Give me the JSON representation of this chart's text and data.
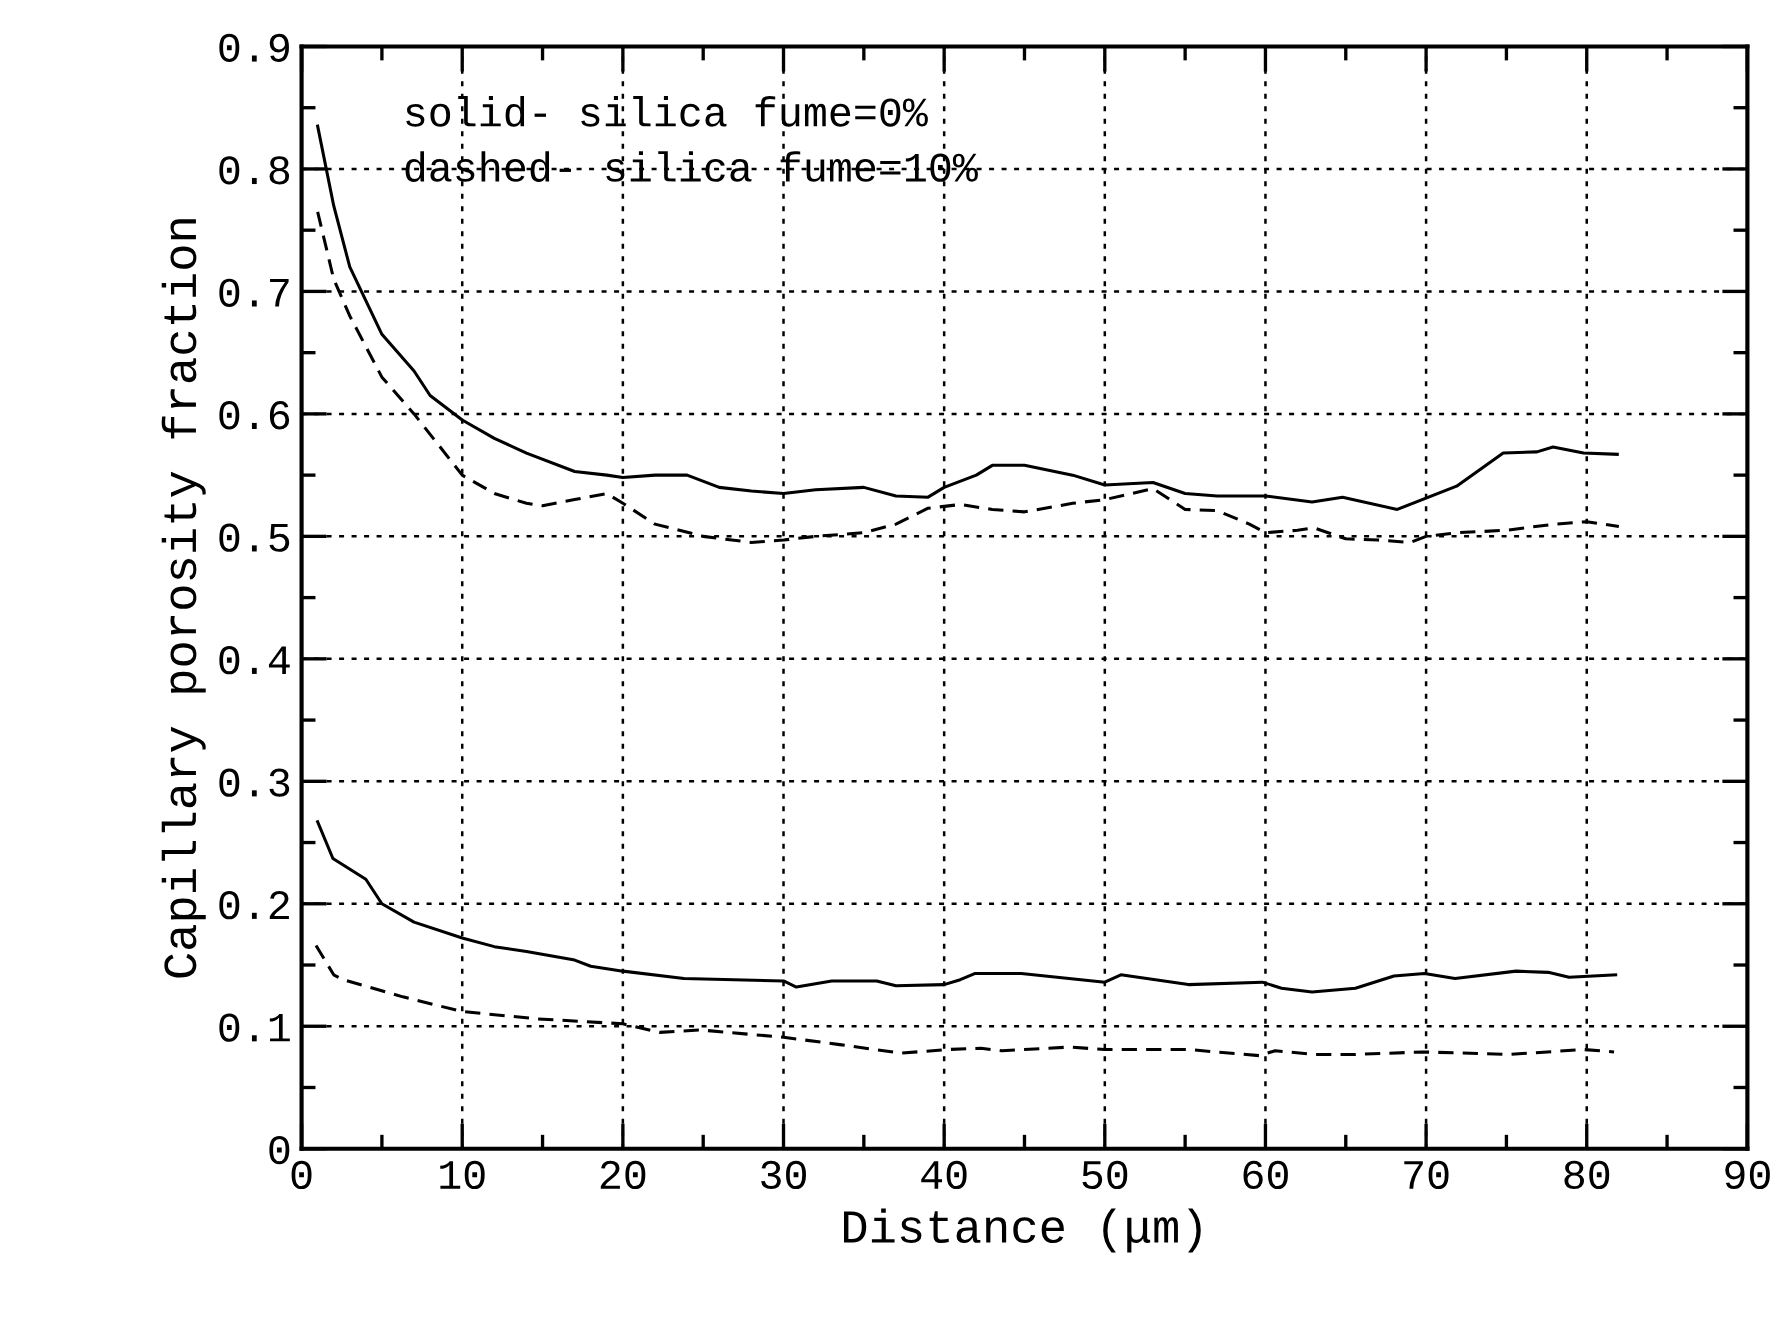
{
  "chart_data": {
    "type": "line",
    "xlabel": "Distance (μm)",
    "ylabel": "Capillary porosity fraction",
    "annotations": [
      "solid- silica fume=0%",
      "dashed- silica fume=10%"
    ],
    "xlim": [
      0,
      90
    ],
    "ylim": [
      0,
      0.9
    ],
    "xticks": [
      0,
      10,
      20,
      30,
      40,
      50,
      60,
      70,
      80,
      90
    ],
    "yticks": [
      0,
      0.1,
      0.2,
      0.3,
      0.4,
      0.5,
      0.6,
      0.7,
      0.8,
      0.9
    ],
    "grid": true,
    "marker": "none",
    "series": [
      {
        "color": "#000000",
        "line_style": "solid",
        "x": [
          1,
          2,
          3,
          5,
          7,
          8,
          10,
          12,
          14,
          17,
          19,
          20,
          22,
          24,
          26,
          28,
          30,
          32,
          35,
          37,
          39,
          40,
          42,
          43,
          45,
          48,
          50,
          53,
          55,
          57,
          60,
          62.9,
          64.8,
          68.2,
          71.9,
          74.8,
          76.9,
          77.9,
          79.8,
          81.9
        ],
        "values": [
          0.835,
          0.77,
          0.72,
          0.665,
          0.635,
          0.615,
          0.595,
          0.58,
          0.568,
          0.553,
          0.55,
          0.548,
          0.55,
          0.55,
          0.54,
          0.537,
          0.535,
          0.538,
          0.54,
          0.533,
          0.532,
          0.54,
          0.55,
          0.558,
          0.558,
          0.55,
          0.542,
          0.544,
          0.535,
          0.533,
          0.533,
          0.528,
          0.532,
          0.522,
          0.541,
          0.568,
          0.569,
          0.573,
          0.568,
          0.567
        ]
      },
      {
        "color": "#000000",
        "line_style": "dashed",
        "x": [
          1,
          2,
          3,
          5,
          7,
          10,
          12,
          14,
          15,
          17,
          19,
          20,
          22,
          25,
          28,
          30,
          32,
          35,
          37,
          39,
          41,
          43,
          45,
          48,
          50,
          53,
          55,
          57,
          59,
          60,
          62,
          63,
          65,
          67,
          69,
          70,
          72,
          75,
          78,
          80,
          82
        ],
        "values": [
          0.765,
          0.71,
          0.68,
          0.63,
          0.6,
          0.55,
          0.535,
          0.527,
          0.525,
          0.53,
          0.535,
          0.527,
          0.51,
          0.5,
          0.495,
          0.497,
          0.5,
          0.503,
          0.51,
          0.523,
          0.526,
          0.522,
          0.52,
          0.527,
          0.53,
          0.539,
          0.522,
          0.521,
          0.51,
          0.503,
          0.505,
          0.507,
          0.498,
          0.497,
          0.495,
          0.5,
          0.503,
          0.505,
          0.51,
          0.512,
          0.508
        ]
      },
      {
        "color": "#000000",
        "line_style": "solid",
        "x": [
          1,
          1.95,
          4,
          5,
          7,
          10,
          12,
          14,
          17,
          18,
          20,
          23.8,
          30,
          30.8,
          33,
          35.8,
          37,
          40,
          41,
          41.9,
          44.8,
          50,
          51,
          55.2,
          59.8,
          61,
          62.9,
          65.6,
          68,
          69.9,
          71.8,
          75.6,
          77.6,
          78.9,
          81.8
        ],
        "values": [
          0.267,
          0.237,
          0.22,
          0.2,
          0.185,
          0.172,
          0.165,
          0.161,
          0.154,
          0.149,
          0.145,
          0.139,
          0.137,
          0.132,
          0.137,
          0.137,
          0.133,
          0.134,
          0.138,
          0.143,
          0.143,
          0.136,
          0.142,
          0.134,
          0.136,
          0.131,
          0.128,
          0.131,
          0.141,
          0.143,
          0.139,
          0.145,
          0.144,
          0.14,
          0.142
        ]
      },
      {
        "color": "#000000",
        "line_style": "dashed",
        "x": [
          0.9,
          2,
          2.6,
          6.3,
          10,
          14.7,
          20,
          22.3,
          24.8,
          30,
          33.5,
          37.3,
          40.2,
          42.3,
          43.6,
          47.8,
          50,
          55.2,
          59.6,
          60.6,
          63,
          65.6,
          69.8,
          75.2,
          79.8,
          81.7
        ],
        "values": [
          0.166,
          0.142,
          0.138,
          0.124,
          0.112,
          0.106,
          0.102,
          0.095,
          0.097,
          0.091,
          0.085,
          0.078,
          0.081,
          0.082,
          0.08,
          0.083,
          0.081,
          0.081,
          0.076,
          0.08,
          0.077,
          0.077,
          0.079,
          0.077,
          0.081,
          0.079
        ]
      }
    ]
  }
}
